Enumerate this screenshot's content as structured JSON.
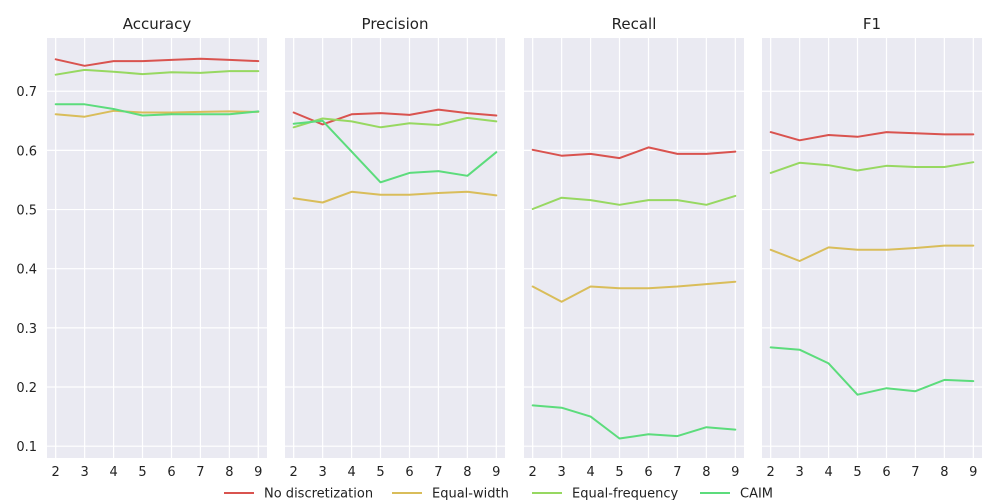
{
  "chart_data": {
    "type": "line",
    "panels": [
      {
        "title": "Accuracy",
        "x": [
          2,
          3,
          4,
          5,
          6,
          7,
          8,
          9
        ],
        "series": [
          {
            "name": "No discretization",
            "values": [
              0.754,
              0.743,
              0.751,
              0.751,
              0.753,
              0.755,
              0.753,
              0.751
            ]
          },
          {
            "name": "Equal-width",
            "values": [
              0.661,
              0.657,
              0.667,
              0.664,
              0.664,
              0.665,
              0.666,
              0.665
            ]
          },
          {
            "name": "Equal-frequency",
            "values": [
              0.728,
              0.736,
              0.733,
              0.729,
              0.732,
              0.731,
              0.734,
              0.734
            ]
          },
          {
            "name": "CAIM",
            "values": [
              0.678,
              0.678,
              0.67,
              0.659,
              0.661,
              0.661,
              0.661,
              0.666
            ]
          }
        ]
      },
      {
        "title": "Precision",
        "x": [
          2,
          3,
          4,
          5,
          6,
          7,
          8,
          9
        ],
        "series": [
          {
            "name": "No discretization",
            "values": [
              0.664,
              0.644,
              0.661,
              0.663,
              0.66,
              0.669,
              0.663,
              0.659
            ]
          },
          {
            "name": "Equal-width",
            "values": [
              0.519,
              0.512,
              0.53,
              0.525,
              0.525,
              0.528,
              0.53,
              0.524
            ]
          },
          {
            "name": "Equal-frequency",
            "values": [
              0.639,
              0.654,
              0.649,
              0.639,
              0.646,
              0.643,
              0.655,
              0.649
            ]
          },
          {
            "name": "CAIM",
            "values": [
              0.645,
              0.65,
              0.598,
              0.546,
              0.562,
              0.565,
              0.557,
              0.597
            ]
          }
        ]
      },
      {
        "title": "Recall",
        "x": [
          2,
          3,
          4,
          5,
          6,
          7,
          8,
          9
        ],
        "series": [
          {
            "name": "No discretization",
            "values": [
              0.601,
              0.591,
              0.594,
              0.587,
              0.605,
              0.594,
              0.594,
              0.598
            ]
          },
          {
            "name": "Equal-width",
            "values": [
              0.37,
              0.344,
              0.37,
              0.367,
              0.367,
              0.37,
              0.374,
              0.378
            ]
          },
          {
            "name": "Equal-frequency",
            "values": [
              0.501,
              0.52,
              0.516,
              0.508,
              0.516,
              0.516,
              0.508,
              0.523
            ]
          },
          {
            "name": "CAIM",
            "values": [
              0.169,
              0.165,
              0.15,
              0.113,
              0.12,
              0.117,
              0.132,
              0.128
            ]
          }
        ]
      },
      {
        "title": "F1",
        "x": [
          2,
          3,
          4,
          5,
          6,
          7,
          8,
          9
        ],
        "series": [
          {
            "name": "No discretization",
            "values": [
              0.631,
              0.617,
              0.626,
              0.623,
              0.631,
              0.629,
              0.627,
              0.627
            ]
          },
          {
            "name": "Equal-width",
            "values": [
              0.432,
              0.413,
              0.436,
              0.432,
              0.432,
              0.435,
              0.439,
              0.439
            ]
          },
          {
            "name": "Equal-frequency",
            "values": [
              0.562,
              0.579,
              0.575,
              0.566,
              0.574,
              0.572,
              0.572,
              0.58
            ]
          },
          {
            "name": "CAIM",
            "values": [
              0.267,
              0.263,
              0.24,
              0.187,
              0.198,
              0.193,
              0.212,
              0.21
            ]
          }
        ]
      }
    ],
    "ylim": [
      0.08,
      0.79
    ],
    "xlim": [
      1.7,
      9.3
    ],
    "yticks": [
      0.1,
      0.2,
      0.3,
      0.4,
      0.5,
      0.6,
      0.7
    ],
    "xticks": [
      2,
      3,
      4,
      5,
      6,
      7,
      8,
      9
    ],
    "shared_y": true,
    "grid": true,
    "legend_position": "bottom-center",
    "colors": {
      "No discretization": "#d9534f",
      "Equal-width": "#d9bd5a",
      "Equal-frequency": "#97d861",
      "CAIM": "#5cdc7c",
      "panel_background": "#eaeaf2",
      "grid": "#ffffff"
    }
  }
}
